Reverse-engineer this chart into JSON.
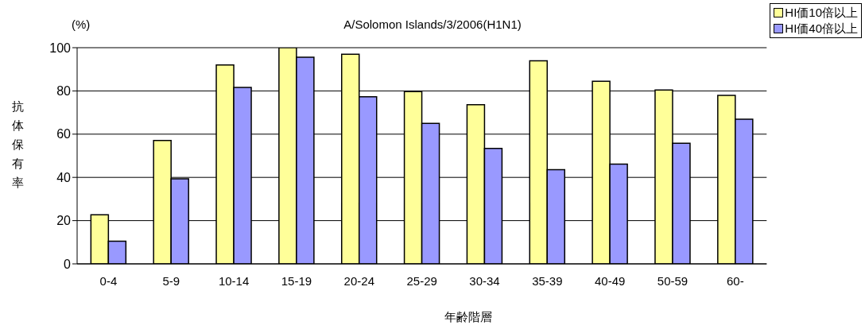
{
  "chart_data": {
    "type": "bar",
    "title": "A/Solomon Islands/3/2006(H1N1)",
    "xlabel": "年齢階層",
    "ylabel": "抗体保有率",
    "annotations": [
      "(%)"
    ],
    "categories": [
      "0-4",
      "5-9",
      "10-14",
      "15-19",
      "20-24",
      "25-29",
      "30-34",
      "35-39",
      "40-49",
      "50-59",
      "60-"
    ],
    "series": [
      {
        "name": "HI価10倍以上",
        "color": "#ffff99",
        "values": [
          22.7,
          57.1,
          92,
          100,
          97,
          79.7,
          73.6,
          93.9,
          84.5,
          80.4,
          77.9
        ]
      },
      {
        "name": "HI価40倍以上",
        "color": "#9999ff",
        "values": [
          10.5,
          39.3,
          81.6,
          95.6,
          77.3,
          65,
          53.4,
          43.6,
          46.1,
          55.8,
          66.9
        ]
      }
    ],
    "ylim": [
      0,
      100
    ],
    "yticks": [
      0,
      20,
      40,
      60,
      80,
      100
    ],
    "grid": "y",
    "legend": "top right"
  }
}
